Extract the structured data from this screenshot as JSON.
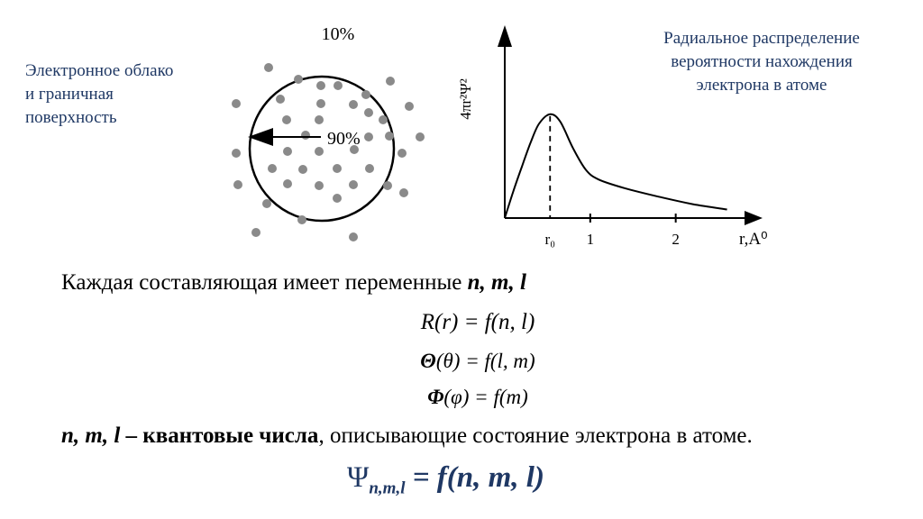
{
  "left_caption": [
    "Электронное облако",
    "и  граничная",
    "поверхность"
  ],
  "cloud": {
    "outer_label": "10%",
    "inner_label": "90%"
  },
  "right_caption": [
    "Радиальное распределение",
    "вероятности нахождения",
    "электрона в атоме"
  ],
  "chart_data": {
    "type": "line",
    "ylabel": "4πr²Ψ²",
    "xlabel": "r,A⁰",
    "x_ticks": [
      "r₀",
      "1",
      "2"
    ],
    "series": [
      {
        "x": [
          0,
          0.1,
          0.2,
          0.3,
          0.4,
          0.53,
          0.65,
          0.8,
          0.95,
          1.1,
          1.4,
          1.8,
          2.2,
          2.6
        ],
        "y": [
          0,
          0.25,
          0.48,
          0.7,
          0.88,
          0.97,
          0.9,
          0.65,
          0.45,
          0.36,
          0.28,
          0.2,
          0.13,
          0.08
        ]
      }
    ],
    "marker_x": 0.53,
    "xlim": [
      0,
      2.9
    ],
    "ylim": [
      0,
      1.6
    ]
  },
  "text": {
    "line1_prefix": "Каждая составляющая имеет переменные ",
    "line1_vars": "n, m, l",
    "eq1": "R(r) = f(n, l)",
    "eq2_sym": "Θ",
    "eq2_rest": "(θ) = f(l, m)",
    "eq3_sym": "Φ",
    "eq3_rest": "(φ) = f(m)",
    "line5_vars": "n, m, l",
    "line5_bold": " – квантовые числа",
    "line5_rest": ", описывающие состояние электрона в атоме.",
    "psi_sym": "Ψ",
    "psi_sub": "n,m,l",
    "psi_rhs": " = f(n, m, l)"
  }
}
